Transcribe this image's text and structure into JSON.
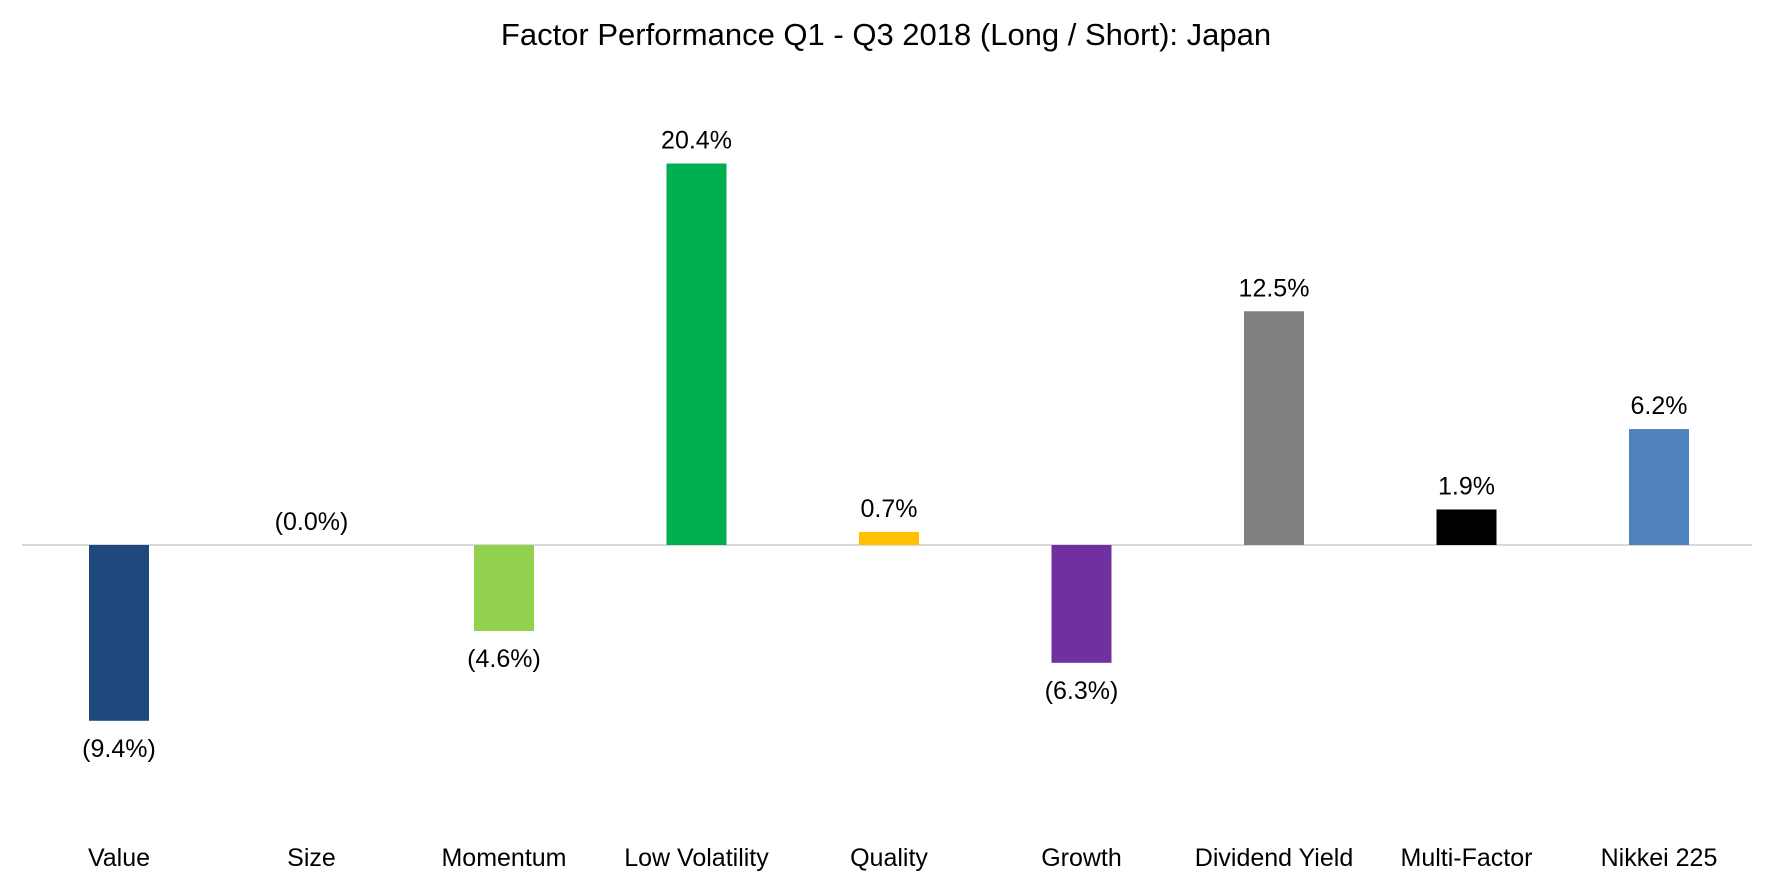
{
  "chart_data": {
    "type": "bar",
    "title": "Factor Performance Q1 - Q3 2018 (Long / Short): Japan",
    "xlabel": "",
    "ylabel": "",
    "categories": [
      "Value",
      "Size",
      "Momentum",
      "Low Volatility",
      "Quality",
      "Growth",
      "Dividend Yield",
      "Multi-Factor",
      "Nikkei 225"
    ],
    "values": [
      -9.4,
      -0.0,
      -4.6,
      20.4,
      0.7,
      -6.3,
      12.5,
      1.9,
      6.2
    ],
    "data_labels": [
      "(9.4%)",
      "(0.0%)",
      "(4.6%)",
      "20.4%",
      "0.7%",
      "(6.3%)",
      "12.5%",
      "1.9%",
      "6.2%"
    ],
    "colors": [
      "#1F497D",
      "#1F497D",
      "#92D050",
      "#00B050",
      "#FFC000",
      "#7030A0",
      "#808080",
      "#000000",
      "#4F81BD"
    ],
    "ylim": [
      -12,
      22
    ],
    "grid": false,
    "legend": "none",
    "axis_color": "#D9D9D9"
  }
}
